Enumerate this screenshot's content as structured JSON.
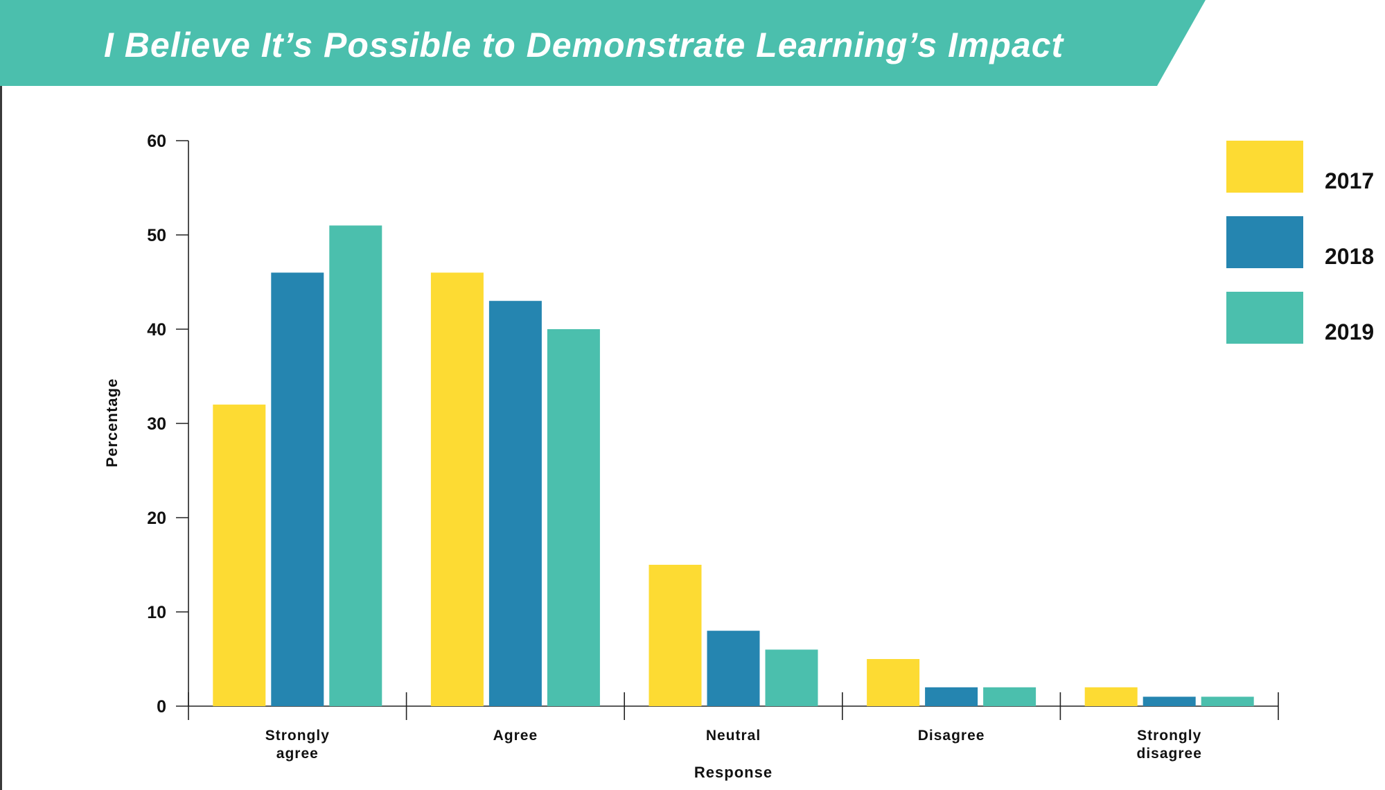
{
  "colors": {
    "banner": "#4bbfad",
    "title_text": "#ffffff",
    "axis": "#222222"
  },
  "chart_data": {
    "type": "bar",
    "title": "I Believe It’s Possible to Demonstrate Learning’s Impact",
    "xlabel": "Response",
    "ylabel": "Percentage",
    "ylim": [
      0,
      60
    ],
    "yticks": [
      0,
      10,
      20,
      30,
      40,
      50,
      60
    ],
    "categories": [
      [
        "Strongly",
        "agree"
      ],
      [
        "Agree"
      ],
      [
        "Neutral"
      ],
      [
        "Disagree"
      ],
      [
        "Strongly",
        "disagree"
      ]
    ],
    "series": [
      {
        "name": "2017",
        "color": "#fddb33",
        "values": [
          32,
          46,
          15,
          5,
          2
        ]
      },
      {
        "name": "2018",
        "color": "#2585b0",
        "values": [
          46,
          43,
          8,
          2,
          1
        ]
      },
      {
        "name": "2019",
        "color": "#4bbfad",
        "values": [
          51,
          40,
          6,
          2,
          1
        ]
      }
    ],
    "legend_position": "top-right",
    "grid": false
  }
}
